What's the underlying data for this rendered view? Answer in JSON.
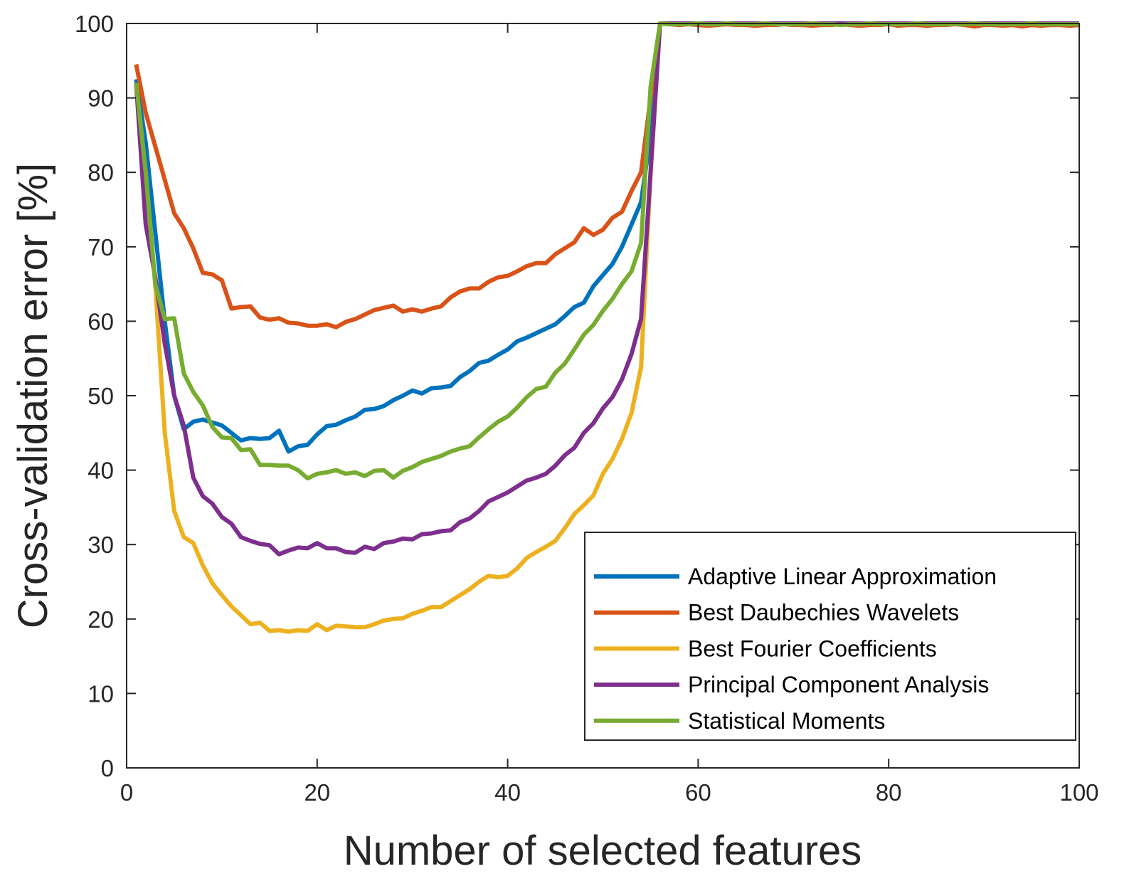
{
  "chart_data": {
    "type": "line",
    "title": "",
    "xlabel": "Number of selected features",
    "ylabel": "Cross-validation error [%]",
    "xlim": [
      0,
      100
    ],
    "ylim": [
      0,
      100
    ],
    "xticks": [
      0,
      20,
      40,
      60,
      80,
      100
    ],
    "yticks": [
      0,
      10,
      20,
      30,
      40,
      50,
      60,
      70,
      80,
      90,
      100
    ],
    "grid": false,
    "legend_position": "bottom-right",
    "x_start": 1,
    "series": [
      {
        "name": "Adaptive Linear Approximation",
        "color": "#0072BD",
        "values": [
          92.5,
          84,
          72,
          60,
          50,
          45.5,
          46.5,
          46.8,
          46.4,
          46,
          45,
          44,
          44.3,
          44.2,
          44.3,
          45.3,
          42.5,
          43.2,
          43.4,
          44.8,
          45.9,
          46.1,
          46.7,
          47.2,
          48.1,
          48.2,
          48.6,
          49.4,
          50,
          50.7,
          50.3,
          51,
          51.1,
          51.3,
          52.5,
          53.3,
          54.4,
          54.7,
          55.5,
          56.2,
          57.3,
          57.8,
          58.4,
          59,
          59.6,
          60.7,
          61.9,
          62.5,
          64.7,
          66.2,
          67.7,
          70,
          73,
          76,
          85,
          100,
          100,
          100,
          100,
          100,
          100,
          100,
          100,
          100,
          100,
          100,
          100,
          100,
          100,
          100,
          100,
          100,
          100,
          100,
          100,
          100,
          100,
          100,
          100,
          100,
          100,
          100,
          100,
          100,
          100,
          100,
          100,
          100,
          100,
          100,
          100,
          100,
          100,
          100,
          100,
          100,
          100,
          100,
          100,
          100
        ]
      },
      {
        "name": "Best Daubechies Wavelets",
        "color": "#D95319",
        "values": [
          94.5,
          88,
          83.5,
          79,
          74.5,
          72.5,
          69.8,
          66.5,
          66.3,
          65.5,
          61.7,
          61.9,
          62,
          60.5,
          60.2,
          60.4,
          59.8,
          59.7,
          59.4,
          59.4,
          59.6,
          59.2,
          59.9,
          60.3,
          60.9,
          61.5,
          61.8,
          62.1,
          61.3,
          61.6,
          61.3,
          61.7,
          62,
          63.2,
          64,
          64.4,
          64.4,
          65.3,
          65.9,
          66.1,
          66.7,
          67.4,
          67.8,
          67.8,
          69,
          69.8,
          70.6,
          72.5,
          71.6,
          72.3,
          73.9,
          74.7,
          77.5,
          80,
          90,
          100,
          99.9,
          99.8,
          99.9,
          99.8,
          99.7,
          99.8,
          99.9,
          99.8,
          99.8,
          99.7,
          99.8,
          99.8,
          99.9,
          99.8,
          99.8,
          99.7,
          99.8,
          99.8,
          99.9,
          99.8,
          99.7,
          99.8,
          99.8,
          99.9,
          99.7,
          99.8,
          99.8,
          99.7,
          99.8,
          99.8,
          99.9,
          99.8,
          99.6,
          99.8,
          99.8,
          99.7,
          99.8,
          99.6,
          99.8,
          99.7,
          99.8,
          99.8,
          99.7,
          99.8
        ]
      },
      {
        "name": "Best Fourier Coefficients",
        "color": "#EDB120",
        "values": [
          92,
          80,
          65,
          45,
          34.5,
          31,
          30.2,
          27.2,
          24.8,
          23.2,
          21.7,
          20.5,
          19.3,
          19.5,
          18.4,
          18.5,
          18.3,
          18.5,
          18.4,
          19.3,
          18.5,
          19.1,
          19,
          18.9,
          18.9,
          19.3,
          19.8,
          20,
          20.1,
          20.7,
          21.1,
          21.6,
          21.6,
          22.4,
          23.2,
          24,
          25,
          25.8,
          25.6,
          25.8,
          26.8,
          28.2,
          29,
          29.7,
          30.5,
          32.2,
          34.1,
          35.3,
          36.6,
          39.5,
          41.5,
          44.2,
          47.7,
          53.8,
          80,
          100,
          100,
          100,
          100,
          100,
          100,
          100,
          100,
          100,
          100,
          100,
          100,
          100,
          100,
          100,
          100,
          100,
          100,
          100,
          100,
          100,
          100,
          100,
          100,
          100,
          100,
          100,
          100,
          100,
          100,
          100,
          100,
          100,
          100,
          100,
          100,
          100,
          100,
          100,
          100,
          100,
          100,
          100,
          100,
          100
        ]
      },
      {
        "name": "Principal Component Analysis",
        "color": "#7E2F8E",
        "values": [
          92,
          73,
          66,
          57,
          50,
          46,
          39,
          36.5,
          35.5,
          33.7,
          32.8,
          31,
          30.5,
          30.1,
          29.9,
          28.7,
          29.2,
          29.6,
          29.5,
          30.2,
          29.5,
          29.5,
          29,
          28.9,
          29.7,
          29.4,
          30.2,
          30.4,
          30.8,
          30.7,
          31.4,
          31.5,
          31.8,
          31.9,
          33,
          33.5,
          34.5,
          35.8,
          36.4,
          37,
          37.8,
          38.6,
          39,
          39.5,
          40.6,
          42,
          43,
          45,
          46.3,
          48.3,
          49.8,
          52.2,
          55.6,
          60.3,
          80,
          100,
          100,
          100,
          100,
          100,
          100,
          100,
          100,
          100,
          100,
          100,
          100,
          100,
          100,
          100,
          100,
          100,
          100,
          100,
          100,
          100,
          100,
          100,
          100,
          100,
          100,
          100,
          100,
          100,
          100,
          100,
          100,
          100,
          100,
          100,
          100,
          100,
          100,
          100,
          100,
          100,
          100,
          100,
          100,
          100
        ]
      },
      {
        "name": "Statistical Moments",
        "color": "#77AC30",
        "values": [
          92,
          80,
          65,
          60.3,
          60.4,
          53,
          50.5,
          48.7,
          45.8,
          44.4,
          44.3,
          42.7,
          42.8,
          40.7,
          40.7,
          40.6,
          40.6,
          40,
          38.9,
          39.5,
          39.7,
          40,
          39.5,
          39.7,
          39.2,
          39.9,
          40,
          39,
          39.9,
          40.4,
          41.1,
          41.5,
          41.9,
          42.5,
          42.9,
          43.2,
          44.4,
          45.5,
          46.5,
          47.2,
          48.4,
          49.8,
          50.9,
          51.2,
          53.1,
          54.3,
          56.2,
          58.2,
          59.5,
          61.4,
          63,
          65,
          66.7,
          70.5,
          91.5,
          100,
          99.9,
          99.9,
          99.9,
          100,
          99.9,
          99.9,
          100,
          99.9,
          99.9,
          99.9,
          100,
          99.9,
          99.9,
          99.9,
          99.9,
          100,
          99.9,
          99.9,
          99.8,
          99.9,
          99.9,
          100,
          99.9,
          99.9,
          99.9,
          99.9,
          100,
          99.9,
          99.9,
          99.9,
          99.9,
          99.9,
          100,
          99.9,
          99.9,
          99.9,
          99.9,
          99.9,
          100,
          99.9,
          99.9,
          99.9,
          99.9,
          99.9
        ]
      }
    ]
  }
}
